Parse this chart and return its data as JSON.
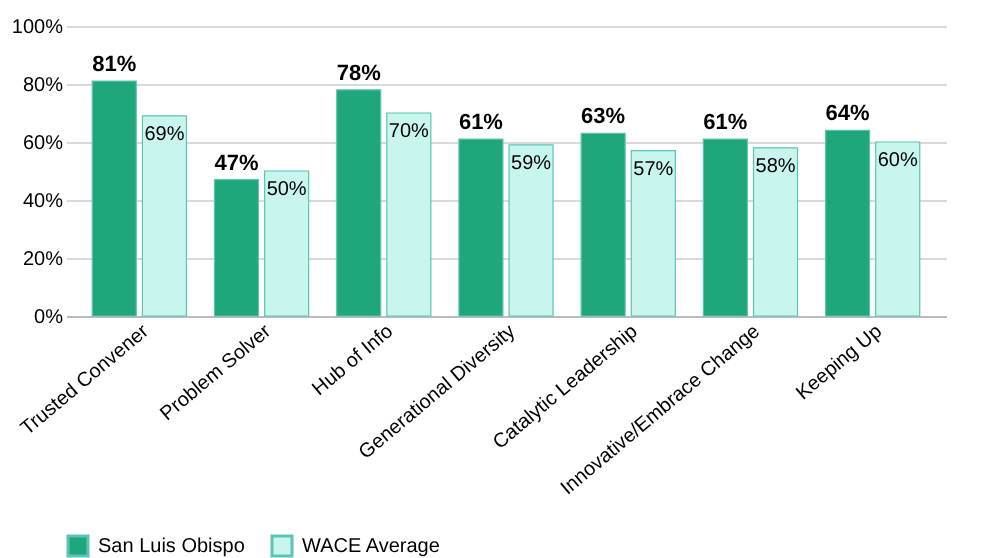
{
  "chart_data": {
    "type": "bar",
    "categories": [
      "Trusted Convener",
      "Problem Solver",
      "Hub of Info",
      "Generational Diversity",
      "Catalytic Leadership",
      "Innovative/Embrace Change",
      "Keeping Up"
    ],
    "series": [
      {
        "name": "San Luis Obispo",
        "color": "#1fa67a",
        "values": [
          81,
          47,
          78,
          61,
          63,
          61,
          64
        ],
        "value_labels": [
          "81%",
          "47%",
          "78%",
          "61%",
          "63%",
          "61%",
          "64%"
        ]
      },
      {
        "name": "WACE Average",
        "color": "#c9f5ef",
        "values": [
          69,
          50,
          70,
          59,
          57,
          58,
          60
        ],
        "value_labels": [
          "69%",
          "50%",
          "70%",
          "59%",
          "57%",
          "58%",
          "60%"
        ]
      }
    ],
    "ylim": [
      0,
      100
    ],
    "yticks": [
      {
        "value": 0,
        "label": "0%"
      },
      {
        "value": 20,
        "label": "20%"
      },
      {
        "value": 40,
        "label": "40%"
      },
      {
        "value": 60,
        "label": "60%"
      },
      {
        "value": 80,
        "label": "80%"
      },
      {
        "value": 100,
        "label": "100%"
      }
    ],
    "grid": "y",
    "legend": "bottom"
  }
}
